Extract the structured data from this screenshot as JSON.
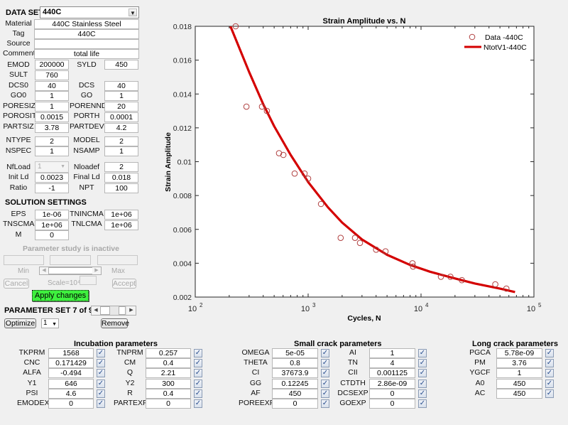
{
  "dataset": {
    "label": "DATA SET",
    "selected": "440C",
    "material_label": "Material",
    "material": "440C Stainless Steel",
    "tag_label": "Tag",
    "tag": "440C",
    "source_label": "Source",
    "source": "",
    "comment_label": "Comment",
    "comment": "total life"
  },
  "material_props": [
    {
      "l1": "EMOD",
      "v1": "200000",
      "l2": "SYLD",
      "v2": "450"
    },
    {
      "l1": "SULT",
      "v1": "760",
      "l2": "",
      "v2": null
    },
    {
      "l1": "DCS0",
      "v1": "40",
      "l2": "DCS",
      "v2": "40"
    },
    {
      "l1": "GO0",
      "v1": "1",
      "l2": "GO",
      "v2": "1"
    },
    {
      "l1": "PORESIZ",
      "v1": "1",
      "l2": "PORENND",
      "v2": "20"
    },
    {
      "l1": "POROSIT",
      "v1": "0.0015",
      "l2": "PORTH",
      "v2": "0.0001"
    },
    {
      "l1": "PARTSIZ",
      "v1": "3.78",
      "l2": "PARTDEV",
      "v2": "4.2"
    },
    {
      "l1": "NTYPE",
      "v1": "2",
      "l2": "MODEL",
      "v2": "2"
    },
    {
      "l1": "NSPEC",
      "v1": "1",
      "l2": "NSAMP",
      "v2": "1"
    }
  ],
  "loading": {
    "nfload_label": "NfLoad",
    "nfload_value": "1",
    "nloadef_label": "Nloadef",
    "nloadef_value": "2",
    "initld_label": "Init Ld",
    "initld_value": "0.0023",
    "finalld_label": "Final Ld",
    "finalld_value": "0.018",
    "ratio_label": "Ratio",
    "ratio_value": "-1",
    "npt_label": "NPT",
    "npt_value": "100"
  },
  "solution": {
    "title": "SOLUTION SETTINGS",
    "eps_label": "EPS",
    "eps": "1e-06",
    "tnincma_label": "TNINCMA",
    "tnincma": "1e+06",
    "tnscma_label": "TNSCMA",
    "tnscma": "1e+06",
    "tnlcma_label": "TNLCMA",
    "tnlcma": "1e+06",
    "m_label": "M",
    "m": "0"
  },
  "param_study": {
    "status": "Parameter study is inactive",
    "min_label": "Min",
    "max_label": "Max",
    "cancel": "Cancel",
    "scale": "Scale=10⁴",
    "accept": "Accept",
    "apply": "Apply changes"
  },
  "param_set": {
    "label": "PARAMETER SET 7 of 9",
    "optimize": "Optimize",
    "optimize_option": "1",
    "remove": "Remove"
  },
  "incubation": {
    "title": "Incubation parameters",
    "rows": [
      {
        "l1": "TKPRM",
        "v1": "1568",
        "l2": "TNPRM",
        "v2": "0.257"
      },
      {
        "l1": "CNC",
        "v1": "0.171429",
        "l2": "CM",
        "v2": "0.4"
      },
      {
        "l1": "ALFA",
        "v1": "-0.494",
        "l2": "Q",
        "v2": "2.21"
      },
      {
        "l1": "Y1",
        "v1": "646",
        "l2": "Y2",
        "v2": "300"
      },
      {
        "l1": "PSI",
        "v1": "4.6",
        "l2": "R",
        "v2": "0.4"
      },
      {
        "l1": "EMODEXP",
        "v1": "0",
        "l2": "PARTEXP",
        "v2": "0"
      }
    ]
  },
  "small_crack": {
    "title": "Small crack parameters",
    "rows": [
      {
        "l1": "OMEGA",
        "v1": "5e-05",
        "l2": "AI",
        "v2": "1"
      },
      {
        "l1": "THETA",
        "v1": "0.8",
        "l2": "TN",
        "v2": "4"
      },
      {
        "l1": "CI",
        "v1": "37673.9",
        "l2": "CII",
        "v2": "0.001125"
      },
      {
        "l1": "GG",
        "v1": "0.12245",
        "l2": "CTDTH",
        "v2": "2.86e-09"
      },
      {
        "l1": "AF",
        "v1": "450",
        "l2": "DCSEXP",
        "v2": "0"
      },
      {
        "l1": "POREEXP",
        "v1": "0",
        "l2": "GOEXP",
        "v2": "0"
      }
    ]
  },
  "long_crack": {
    "title": "Long crack parameters",
    "rows": [
      {
        "l1": "PGCA",
        "v1": "5.78e-09"
      },
      {
        "l1": "PM",
        "v1": "3.76"
      },
      {
        "l1": "YGCF",
        "v1": "1"
      },
      {
        "l1": "A0",
        "v1": "450"
      },
      {
        "l1": "AC",
        "v1": "450"
      }
    ]
  },
  "colors": {
    "fit_line": "#d40000",
    "markers": "#b04040",
    "apply_button": "#3ef03e"
  },
  "chart_data": {
    "type": "scatter",
    "title": "Strain Amplitude vs. N",
    "xlabel": "Cycles, N",
    "ylabel": "Strain Amplitude",
    "xscale": "log",
    "xlim": [
      100,
      100000
    ],
    "ylim": [
      0.002,
      0.018
    ],
    "xticks": [
      "10^2",
      "10^3",
      "10^4",
      "10^5"
    ],
    "yticks": [
      "0.002",
      "0.004",
      "0.006",
      "0.008",
      "0.01",
      "0.012",
      "0.014",
      "0.016",
      "0.018"
    ],
    "legend_position": "upper right",
    "grid": false,
    "series": [
      {
        "name": "Data -440C",
        "style": "markers",
        "x": [
          228,
          284,
          390,
          431,
          552,
          603,
          760,
          930,
          1000,
          1300,
          1940,
          2600,
          2880,
          4000,
          4850,
          8400,
          8500,
          15000,
          18200,
          23000,
          45500,
          57000
        ],
        "y": [
          0.018,
          0.01325,
          0.01325,
          0.013,
          0.0105,
          0.0104,
          0.0093,
          0.0093,
          0.009,
          0.0075,
          0.0055,
          0.0055,
          0.0052,
          0.0048,
          0.0047,
          0.004,
          0.0038,
          0.0032,
          0.0032,
          0.003,
          0.00275,
          0.0025
        ]
      },
      {
        "name": "NtotV1-440C",
        "style": "line",
        "x": [
          205,
          300,
          400,
          500,
          700,
          1000,
          1500,
          2000,
          3000,
          5000,
          8000,
          12000,
          20000,
          30000,
          50000,
          68000
        ],
        "y": [
          0.018,
          0.0153,
          0.0134,
          0.0121,
          0.0104,
          0.0088,
          0.0073,
          0.0064,
          0.0054,
          0.0045,
          0.0039,
          0.0035,
          0.0031,
          0.0028,
          0.0025,
          0.0023
        ]
      }
    ]
  }
}
